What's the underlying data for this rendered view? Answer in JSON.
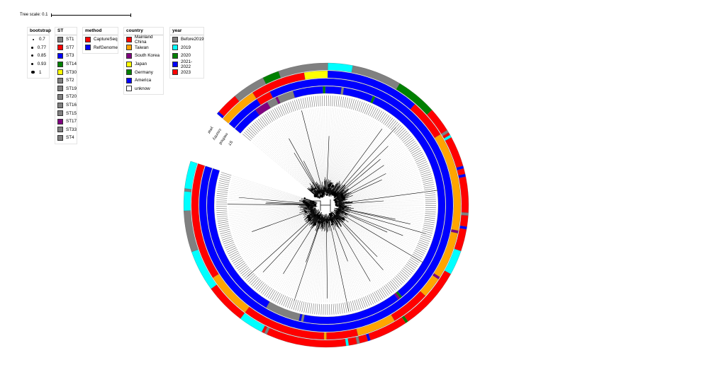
{
  "tree_scale": {
    "label": "Tree scale: 0.1"
  },
  "legends": {
    "bootstrap": {
      "title": "bootstrap",
      "items": [
        "0.7",
        "0.77",
        "0.85",
        "0.93",
        "1"
      ]
    },
    "st": {
      "title": "ST",
      "items": [
        {
          "label": "ST1",
          "color": "#808080"
        },
        {
          "label": "ST7",
          "color": "#ff0000"
        },
        {
          "label": "ST3",
          "color": "#0000ff"
        },
        {
          "label": "ST14",
          "color": "#008000"
        },
        {
          "label": "ST30",
          "color": "#ffff00"
        },
        {
          "label": "ST2",
          "color": "#808080"
        },
        {
          "label": "ST19",
          "color": "#808080"
        },
        {
          "label": "ST20",
          "color": "#808080"
        },
        {
          "label": "ST16",
          "color": "#808080"
        },
        {
          "label": "ST15",
          "color": "#808080"
        },
        {
          "label": "ST17",
          "color": "#800080"
        },
        {
          "label": "ST33",
          "color": "#808080"
        },
        {
          "label": "ST4",
          "color": "#808080"
        }
      ]
    },
    "method": {
      "title": "method",
      "items": [
        {
          "label": "CaptureSeq",
          "color": "#ff0000"
        },
        {
          "label": "RefGenome",
          "color": "#0000ff"
        }
      ]
    },
    "country": {
      "title": "country",
      "items": [
        {
          "label": "Mainland China",
          "color": "#ff0000"
        },
        {
          "label": "Taiwan",
          "color": "#ffa500"
        },
        {
          "label": "South Korea",
          "color": "#800080"
        },
        {
          "label": "Japan",
          "color": "#ffff00"
        },
        {
          "label": "Germany",
          "color": "#008000"
        },
        {
          "label": "America",
          "color": "#0000ff"
        },
        {
          "label": "unknow",
          "color": "#ffffff"
        }
      ]
    },
    "year": {
      "title": "year",
      "items": [
        {
          "label": "Before2019",
          "color": "#808080"
        },
        {
          "label": "2019",
          "color": "#00ffff"
        },
        {
          "label": "2020",
          "color": "#008000"
        },
        {
          "label": "2021-2022",
          "color": "#0000ff"
        },
        {
          "label": "2023",
          "color": "#ff0000"
        }
      ]
    }
  },
  "ring_labels": [
    "year",
    "country",
    "method",
    "ST"
  ],
  "colors": {
    "gray": "#808080",
    "red": "#ff0000",
    "blue": "#0000ff",
    "green": "#008000",
    "yellow": "#ffff00",
    "orange": "#ffa500",
    "purple": "#800080",
    "cyan": "#00ffff",
    "white": "#ffffff"
  }
}
